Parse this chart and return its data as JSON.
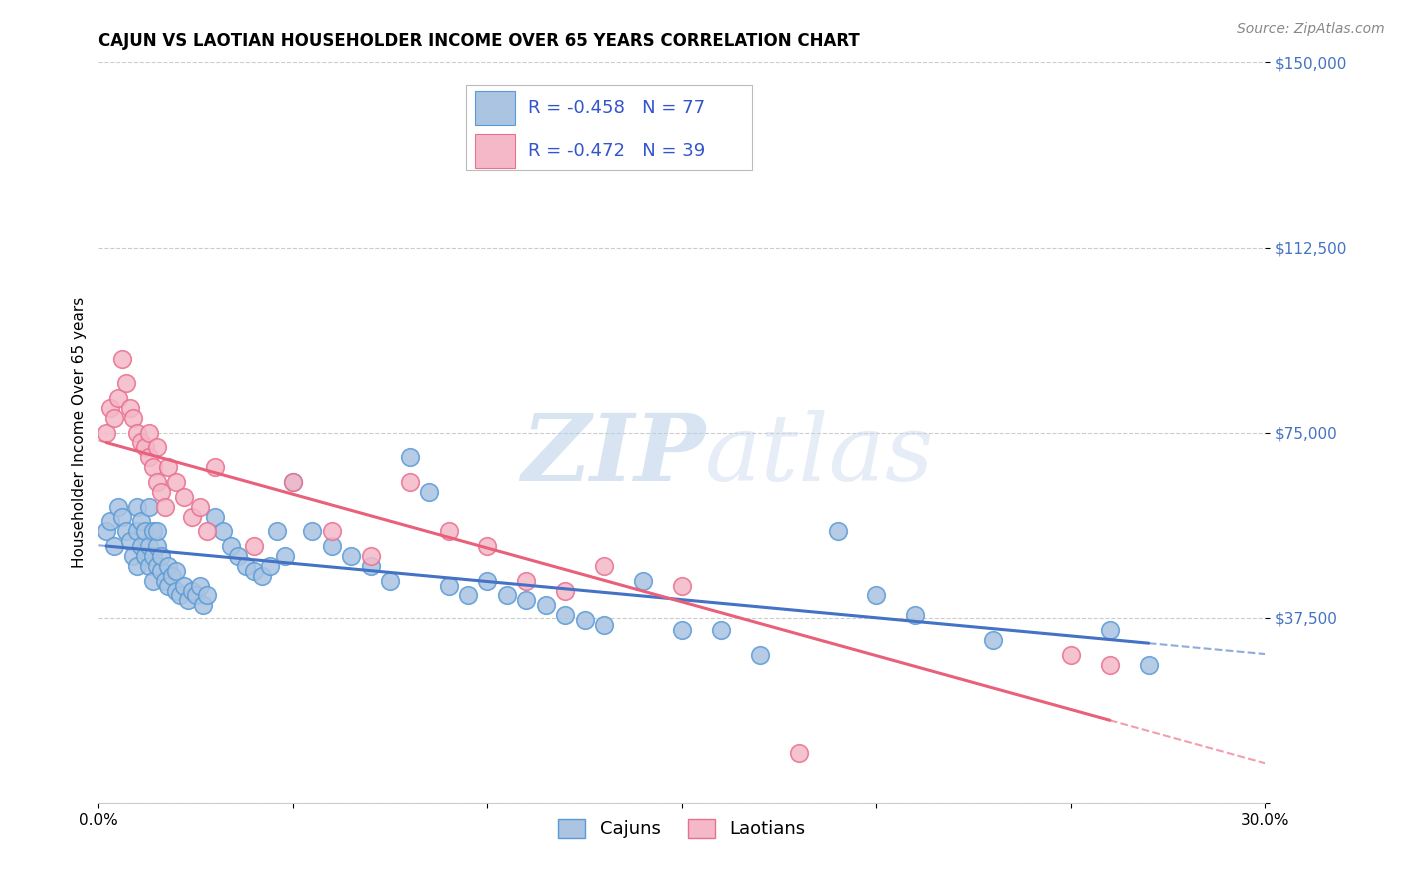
{
  "title": "CAJUN VS LAOTIAN HOUSEHOLDER INCOME OVER 65 YEARS CORRELATION CHART",
  "source": "Source: ZipAtlas.com",
  "ylabel": "Householder Income Over 65 years",
  "xlim": [
    0.0,
    0.3
  ],
  "ylim": [
    0,
    150000
  ],
  "yticks": [
    0,
    37500,
    75000,
    112500,
    150000
  ],
  "ytick_labels": [
    "",
    "$37,500",
    "$75,000",
    "$112,500",
    "$150,000"
  ],
  "xtick_positions": [
    0.0,
    0.05,
    0.1,
    0.15,
    0.2,
    0.25,
    0.3
  ],
  "xtick_labels": [
    "0.0%",
    "",
    "",
    "",
    "",
    "",
    "30.0%"
  ],
  "cajun_color": "#aac4e2",
  "cajun_edge_color": "#5b9bd5",
  "laotian_color": "#f4b8c8",
  "laotian_edge_color": "#e87090",
  "cajun_line_color": "#4472c4",
  "laotian_line_color": "#e8607a",
  "cajun_R": -0.458,
  "cajun_N": 77,
  "laotian_R": -0.472,
  "laotian_N": 39,
  "legend_text_color": "#3355cc",
  "watermark_zip": "ZIP",
  "watermark_atlas": "atlas",
  "background_color": "#ffffff",
  "grid_color": "#cccccc",
  "title_fontsize": 12,
  "source_fontsize": 10,
  "tick_fontsize": 11,
  "ylabel_fontsize": 11,
  "cajun_x": [
    0.002,
    0.003,
    0.004,
    0.005,
    0.006,
    0.007,
    0.008,
    0.009,
    0.01,
    0.01,
    0.01,
    0.011,
    0.011,
    0.012,
    0.012,
    0.013,
    0.013,
    0.013,
    0.014,
    0.014,
    0.014,
    0.015,
    0.015,
    0.015,
    0.016,
    0.016,
    0.017,
    0.018,
    0.018,
    0.019,
    0.02,
    0.02,
    0.021,
    0.022,
    0.023,
    0.024,
    0.025,
    0.026,
    0.027,
    0.028,
    0.03,
    0.032,
    0.034,
    0.036,
    0.038,
    0.04,
    0.042,
    0.044,
    0.046,
    0.048,
    0.05,
    0.055,
    0.06,
    0.065,
    0.07,
    0.075,
    0.08,
    0.085,
    0.09,
    0.095,
    0.1,
    0.105,
    0.11,
    0.115,
    0.12,
    0.125,
    0.13,
    0.14,
    0.15,
    0.16,
    0.17,
    0.19,
    0.2,
    0.21,
    0.23,
    0.26,
    0.27
  ],
  "cajun_y": [
    55000,
    57000,
    52000,
    60000,
    58000,
    55000,
    53000,
    50000,
    48000,
    55000,
    60000,
    52000,
    57000,
    50000,
    55000,
    48000,
    52000,
    60000,
    45000,
    50000,
    55000,
    48000,
    52000,
    55000,
    47000,
    50000,
    45000,
    44000,
    48000,
    46000,
    43000,
    47000,
    42000,
    44000,
    41000,
    43000,
    42000,
    44000,
    40000,
    42000,
    58000,
    55000,
    52000,
    50000,
    48000,
    47000,
    46000,
    48000,
    55000,
    50000,
    65000,
    55000,
    52000,
    50000,
    48000,
    45000,
    70000,
    63000,
    44000,
    42000,
    45000,
    42000,
    41000,
    40000,
    38000,
    37000,
    36000,
    45000,
    35000,
    35000,
    30000,
    55000,
    42000,
    38000,
    33000,
    35000,
    28000
  ],
  "laotian_x": [
    0.002,
    0.003,
    0.004,
    0.005,
    0.006,
    0.007,
    0.008,
    0.009,
    0.01,
    0.011,
    0.012,
    0.013,
    0.013,
    0.014,
    0.015,
    0.015,
    0.016,
    0.017,
    0.018,
    0.02,
    0.022,
    0.024,
    0.026,
    0.028,
    0.03,
    0.04,
    0.05,
    0.06,
    0.07,
    0.08,
    0.09,
    0.1,
    0.11,
    0.12,
    0.13,
    0.15,
    0.18,
    0.25,
    0.26
  ],
  "laotian_y": [
    75000,
    80000,
    78000,
    82000,
    90000,
    85000,
    80000,
    78000,
    75000,
    73000,
    72000,
    70000,
    75000,
    68000,
    65000,
    72000,
    63000,
    60000,
    68000,
    65000,
    62000,
    58000,
    60000,
    55000,
    68000,
    52000,
    65000,
    55000,
    50000,
    65000,
    55000,
    52000,
    45000,
    43000,
    48000,
    44000,
    10000,
    30000,
    28000
  ]
}
